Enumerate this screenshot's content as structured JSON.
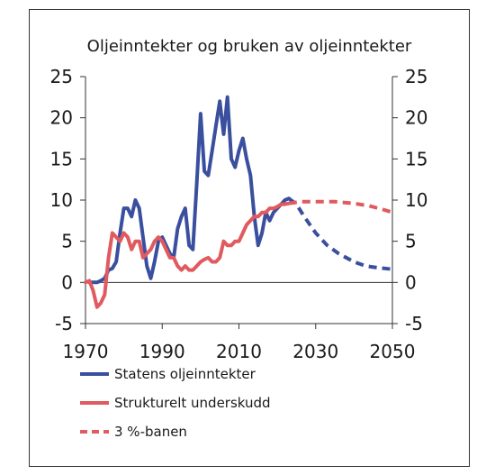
{
  "chart_data": {
    "type": "line",
    "title": "Oljeinntekter og bruken av oljeinntekter",
    "xlabel": "",
    "ylabel": "",
    "xlim": [
      1970,
      2050
    ],
    "ylim": [
      -5,
      25
    ],
    "xticks": [
      1970,
      1990,
      2010,
      2030,
      2050
    ],
    "yticks": [
      -5,
      0,
      5,
      10,
      15,
      20,
      25
    ],
    "grid": false,
    "legend_position": "bottom-left",
    "series": [
      {
        "name": "Statens oljeinntekter",
        "color": "#3a4f9e",
        "style": "solid",
        "x": [
          1971,
          1972,
          1973,
          1974,
          1975,
          1976,
          1977,
          1978,
          1979,
          1980,
          1981,
          1982,
          1983,
          1984,
          1985,
          1986,
          1987,
          1988,
          1989,
          1990,
          1991,
          1992,
          1993,
          1994,
          1995,
          1996,
          1997,
          1998,
          1999,
          2000,
          2001,
          2002,
          2003,
          2004,
          2005,
          2006,
          2007,
          2008,
          2009,
          2010,
          2011,
          2012,
          2013,
          2014,
          2015,
          2016,
          2017,
          2018,
          2019,
          2020,
          2021,
          2022,
          2023
        ],
        "values": [
          0,
          0,
          0,
          0.2,
          0.5,
          1.5,
          1.7,
          2.5,
          6,
          9,
          9,
          8,
          10,
          9,
          5.5,
          2,
          0.5,
          2.5,
          5,
          5.5,
          4.5,
          3.5,
          3,
          6.5,
          8,
          9,
          4.5,
          4,
          12,
          20.5,
          13.5,
          13,
          16,
          19,
          22,
          18,
          22.5,
          15,
          14,
          16,
          17.5,
          15,
          13,
          8,
          4.5,
          6,
          8.5,
          7.5,
          8.5,
          9,
          9.5,
          10,
          10.2
        ]
      },
      {
        "name": "Strukturelt underskudd",
        "color": "#e05a5f",
        "style": "solid",
        "x": [
          1970,
          1971,
          1972,
          1973,
          1974,
          1975,
          1976,
          1977,
          1978,
          1979,
          1980,
          1981,
          1982,
          1983,
          1984,
          1985,
          1986,
          1987,
          1988,
          1989,
          1990,
          1991,
          1992,
          1993,
          1994,
          1995,
          1996,
          1997,
          1998,
          1999,
          2000,
          2001,
          2002,
          2003,
          2004,
          2005,
          2006,
          2007,
          2008,
          2009,
          2010,
          2011,
          2012,
          2013,
          2014,
          2015,
          2016,
          2017,
          2018,
          2019,
          2020,
          2021,
          2022,
          2023
        ],
        "values": [
          0,
          0.2,
          -1,
          -3,
          -2.5,
          -1.5,
          3,
          6,
          5.5,
          5,
          6,
          5.5,
          4,
          5,
          5,
          3,
          3.5,
          4,
          5,
          5.5,
          5,
          4,
          3,
          3,
          2,
          1.5,
          2,
          1.5,
          1.5,
          2,
          2.5,
          2.8,
          3,
          2.5,
          2.5,
          3,
          5,
          4.5,
          4.5,
          5,
          5,
          6,
          7,
          7.5,
          8,
          8,
          8.5,
          8.5,
          9,
          9,
          9.2,
          9.5,
          9.5,
          9.6
        ]
      },
      {
        "name": "",
        "color": "#3a4f9e",
        "style": "dashed",
        "x": [
          2023,
          2025,
          2027,
          2030,
          2033,
          2036,
          2040,
          2043,
          2046,
          2050
        ],
        "values": [
          10.2,
          9.5,
          8,
          6,
          4.5,
          3.5,
          2.5,
          2,
          1.8,
          1.6
        ]
      },
      {
        "name": "3 %-banen",
        "color": "#e05a5f",
        "style": "dashed",
        "x": [
          2023,
          2026,
          2030,
          2035,
          2040,
          2044,
          2048,
          2050
        ],
        "values": [
          9.6,
          9.8,
          9.8,
          9.8,
          9.6,
          9.3,
          8.8,
          8.5
        ]
      }
    ],
    "legend": [
      {
        "label": "Statens oljeinntekter",
        "color": "#3a4f9e",
        "style": "solid"
      },
      {
        "label": "Strukturelt underskudd",
        "color": "#e05a5f",
        "style": "solid"
      },
      {
        "label": "3 %-banen",
        "color": "#e05a5f",
        "style": "dashed"
      }
    ]
  }
}
